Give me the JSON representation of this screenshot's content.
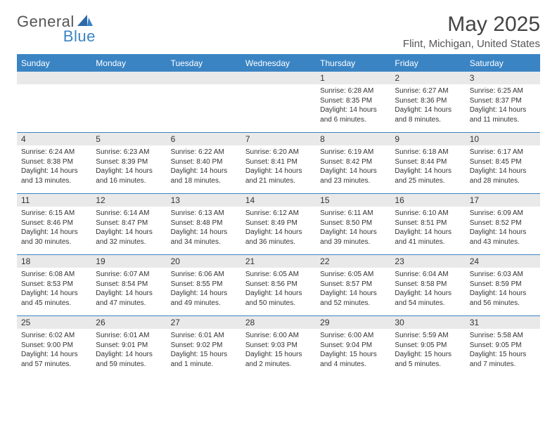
{
  "brand": {
    "part1": "General",
    "part2": "Blue"
  },
  "title": "May 2025",
  "location": "Flint, Michigan, United States",
  "colors": {
    "accent": "#3a84c4",
    "header_bg": "#3a84c4",
    "daynum_bg": "#e9e9e9",
    "text": "#333333"
  },
  "dow": [
    "Sunday",
    "Monday",
    "Tuesday",
    "Wednesday",
    "Thursday",
    "Friday",
    "Saturday"
  ],
  "weeks": [
    [
      {
        "n": "",
        "sunrise": "",
        "sunset": "",
        "daylight1": "",
        "daylight2": ""
      },
      {
        "n": "",
        "sunrise": "",
        "sunset": "",
        "daylight1": "",
        "daylight2": ""
      },
      {
        "n": "",
        "sunrise": "",
        "sunset": "",
        "daylight1": "",
        "daylight2": ""
      },
      {
        "n": "",
        "sunrise": "",
        "sunset": "",
        "daylight1": "",
        "daylight2": ""
      },
      {
        "n": "1",
        "sunrise": "Sunrise: 6:28 AM",
        "sunset": "Sunset: 8:35 PM",
        "daylight1": "Daylight: 14 hours",
        "daylight2": "and 6 minutes."
      },
      {
        "n": "2",
        "sunrise": "Sunrise: 6:27 AM",
        "sunset": "Sunset: 8:36 PM",
        "daylight1": "Daylight: 14 hours",
        "daylight2": "and 8 minutes."
      },
      {
        "n": "3",
        "sunrise": "Sunrise: 6:25 AM",
        "sunset": "Sunset: 8:37 PM",
        "daylight1": "Daylight: 14 hours",
        "daylight2": "and 11 minutes."
      }
    ],
    [
      {
        "n": "4",
        "sunrise": "Sunrise: 6:24 AM",
        "sunset": "Sunset: 8:38 PM",
        "daylight1": "Daylight: 14 hours",
        "daylight2": "and 13 minutes."
      },
      {
        "n": "5",
        "sunrise": "Sunrise: 6:23 AM",
        "sunset": "Sunset: 8:39 PM",
        "daylight1": "Daylight: 14 hours",
        "daylight2": "and 16 minutes."
      },
      {
        "n": "6",
        "sunrise": "Sunrise: 6:22 AM",
        "sunset": "Sunset: 8:40 PM",
        "daylight1": "Daylight: 14 hours",
        "daylight2": "and 18 minutes."
      },
      {
        "n": "7",
        "sunrise": "Sunrise: 6:20 AM",
        "sunset": "Sunset: 8:41 PM",
        "daylight1": "Daylight: 14 hours",
        "daylight2": "and 21 minutes."
      },
      {
        "n": "8",
        "sunrise": "Sunrise: 6:19 AM",
        "sunset": "Sunset: 8:42 PM",
        "daylight1": "Daylight: 14 hours",
        "daylight2": "and 23 minutes."
      },
      {
        "n": "9",
        "sunrise": "Sunrise: 6:18 AM",
        "sunset": "Sunset: 8:44 PM",
        "daylight1": "Daylight: 14 hours",
        "daylight2": "and 25 minutes."
      },
      {
        "n": "10",
        "sunrise": "Sunrise: 6:17 AM",
        "sunset": "Sunset: 8:45 PM",
        "daylight1": "Daylight: 14 hours",
        "daylight2": "and 28 minutes."
      }
    ],
    [
      {
        "n": "11",
        "sunrise": "Sunrise: 6:15 AM",
        "sunset": "Sunset: 8:46 PM",
        "daylight1": "Daylight: 14 hours",
        "daylight2": "and 30 minutes."
      },
      {
        "n": "12",
        "sunrise": "Sunrise: 6:14 AM",
        "sunset": "Sunset: 8:47 PM",
        "daylight1": "Daylight: 14 hours",
        "daylight2": "and 32 minutes."
      },
      {
        "n": "13",
        "sunrise": "Sunrise: 6:13 AM",
        "sunset": "Sunset: 8:48 PM",
        "daylight1": "Daylight: 14 hours",
        "daylight2": "and 34 minutes."
      },
      {
        "n": "14",
        "sunrise": "Sunrise: 6:12 AM",
        "sunset": "Sunset: 8:49 PM",
        "daylight1": "Daylight: 14 hours",
        "daylight2": "and 36 minutes."
      },
      {
        "n": "15",
        "sunrise": "Sunrise: 6:11 AM",
        "sunset": "Sunset: 8:50 PM",
        "daylight1": "Daylight: 14 hours",
        "daylight2": "and 39 minutes."
      },
      {
        "n": "16",
        "sunrise": "Sunrise: 6:10 AM",
        "sunset": "Sunset: 8:51 PM",
        "daylight1": "Daylight: 14 hours",
        "daylight2": "and 41 minutes."
      },
      {
        "n": "17",
        "sunrise": "Sunrise: 6:09 AM",
        "sunset": "Sunset: 8:52 PM",
        "daylight1": "Daylight: 14 hours",
        "daylight2": "and 43 minutes."
      }
    ],
    [
      {
        "n": "18",
        "sunrise": "Sunrise: 6:08 AM",
        "sunset": "Sunset: 8:53 PM",
        "daylight1": "Daylight: 14 hours",
        "daylight2": "and 45 minutes."
      },
      {
        "n": "19",
        "sunrise": "Sunrise: 6:07 AM",
        "sunset": "Sunset: 8:54 PM",
        "daylight1": "Daylight: 14 hours",
        "daylight2": "and 47 minutes."
      },
      {
        "n": "20",
        "sunrise": "Sunrise: 6:06 AM",
        "sunset": "Sunset: 8:55 PM",
        "daylight1": "Daylight: 14 hours",
        "daylight2": "and 49 minutes."
      },
      {
        "n": "21",
        "sunrise": "Sunrise: 6:05 AM",
        "sunset": "Sunset: 8:56 PM",
        "daylight1": "Daylight: 14 hours",
        "daylight2": "and 50 minutes."
      },
      {
        "n": "22",
        "sunrise": "Sunrise: 6:05 AM",
        "sunset": "Sunset: 8:57 PM",
        "daylight1": "Daylight: 14 hours",
        "daylight2": "and 52 minutes."
      },
      {
        "n": "23",
        "sunrise": "Sunrise: 6:04 AM",
        "sunset": "Sunset: 8:58 PM",
        "daylight1": "Daylight: 14 hours",
        "daylight2": "and 54 minutes."
      },
      {
        "n": "24",
        "sunrise": "Sunrise: 6:03 AM",
        "sunset": "Sunset: 8:59 PM",
        "daylight1": "Daylight: 14 hours",
        "daylight2": "and 56 minutes."
      }
    ],
    [
      {
        "n": "25",
        "sunrise": "Sunrise: 6:02 AM",
        "sunset": "Sunset: 9:00 PM",
        "daylight1": "Daylight: 14 hours",
        "daylight2": "and 57 minutes."
      },
      {
        "n": "26",
        "sunrise": "Sunrise: 6:01 AM",
        "sunset": "Sunset: 9:01 PM",
        "daylight1": "Daylight: 14 hours",
        "daylight2": "and 59 minutes."
      },
      {
        "n": "27",
        "sunrise": "Sunrise: 6:01 AM",
        "sunset": "Sunset: 9:02 PM",
        "daylight1": "Daylight: 15 hours",
        "daylight2": "and 1 minute."
      },
      {
        "n": "28",
        "sunrise": "Sunrise: 6:00 AM",
        "sunset": "Sunset: 9:03 PM",
        "daylight1": "Daylight: 15 hours",
        "daylight2": "and 2 minutes."
      },
      {
        "n": "29",
        "sunrise": "Sunrise: 6:00 AM",
        "sunset": "Sunset: 9:04 PM",
        "daylight1": "Daylight: 15 hours",
        "daylight2": "and 4 minutes."
      },
      {
        "n": "30",
        "sunrise": "Sunrise: 5:59 AM",
        "sunset": "Sunset: 9:05 PM",
        "daylight1": "Daylight: 15 hours",
        "daylight2": "and 5 minutes."
      },
      {
        "n": "31",
        "sunrise": "Sunrise: 5:58 AM",
        "sunset": "Sunset: 9:05 PM",
        "daylight1": "Daylight: 15 hours",
        "daylight2": "and 7 minutes."
      }
    ]
  ]
}
